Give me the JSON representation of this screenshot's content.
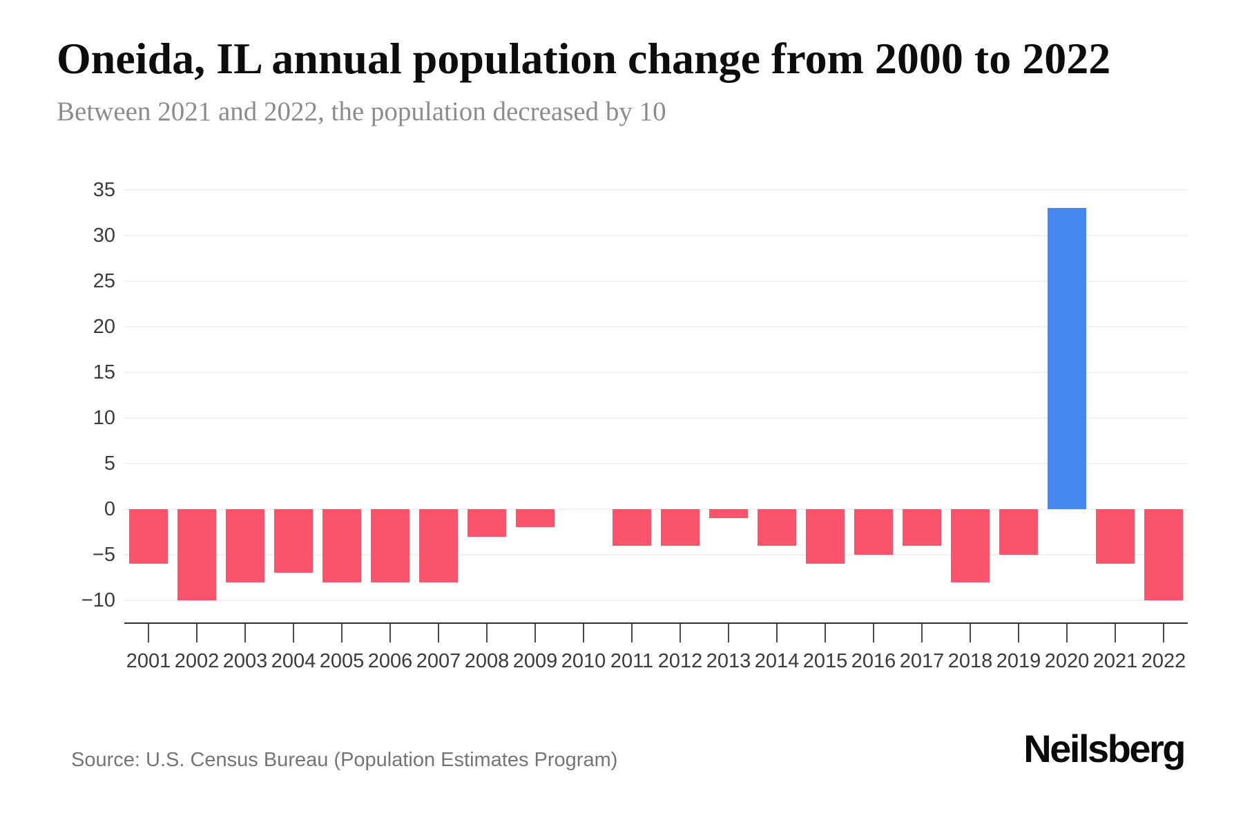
{
  "header": {
    "title": "Oneida, IL annual population change from 2000 to 2022",
    "subtitle": "Between 2021 and 2022, the population decreased by 10"
  },
  "footer": {
    "source": "Source: U.S. Census Bureau (Population Estimates Program)",
    "brand": "Neilsberg"
  },
  "colors": {
    "bar_negative": "#f9546c",
    "bar_positive": "#4787f1",
    "gridline": "#f1f1f1",
    "axis_line": "#2f2f2f",
    "tick_mark": "#4a4a4a",
    "tick_label": "#3b3b3b",
    "subtitle_text": "#8c8c8c",
    "source_text": "#757575"
  },
  "chart_data": {
    "type": "bar",
    "title": "Oneida, IL annual population change from 2000 to 2022",
    "subtitle": "Between 2021 and 2022, the population decreased by 10",
    "xlabel": "",
    "ylabel": "",
    "grid": true,
    "legend": false,
    "ylim": [
      -12.5,
      36
    ],
    "categories": [
      "2001",
      "2002",
      "2003",
      "2004",
      "2005",
      "2006",
      "2007",
      "2008",
      "2009",
      "2010",
      "2011",
      "2012",
      "2013",
      "2014",
      "2015",
      "2016",
      "2017",
      "2018",
      "2019",
      "2020",
      "2021",
      "2022"
    ],
    "values": [
      -6,
      -10,
      -8,
      -7,
      -8,
      -8,
      -8,
      -3,
      -2,
      0,
      -4,
      -4,
      -1,
      -4,
      -6,
      -5,
      -4,
      -8,
      -5,
      33,
      -6,
      -10
    ],
    "yticks": [
      {
        "value": 35,
        "label": "35"
      },
      {
        "value": 30,
        "label": "30"
      },
      {
        "value": 25,
        "label": "25"
      },
      {
        "value": 20,
        "label": "20"
      },
      {
        "value": 15,
        "label": "15"
      },
      {
        "value": 10,
        "label": "10"
      },
      {
        "value": 5,
        "label": "5"
      },
      {
        "value": 0,
        "label": "0"
      },
      {
        "value": -5,
        "label": "−5"
      },
      {
        "value": -10,
        "label": "−10"
      }
    ]
  }
}
